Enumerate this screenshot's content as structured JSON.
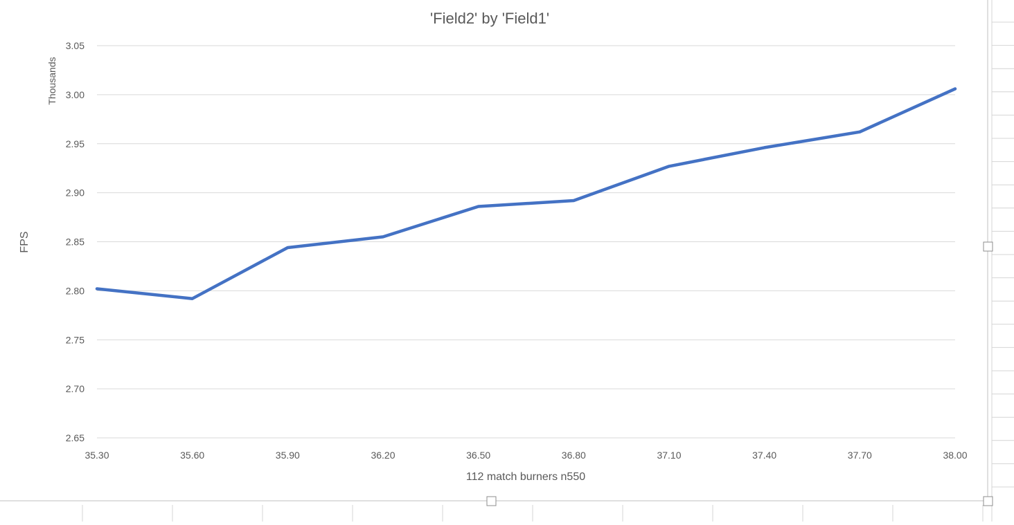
{
  "chart_data": {
    "type": "line",
    "title": "'Field2' by 'Field1'",
    "xlabel": "112 match burners n550",
    "ylabel": "FPS",
    "y_unit_label": "Thousands",
    "x": [
      35.3,
      35.6,
      35.9,
      36.2,
      36.5,
      36.8,
      37.1,
      37.4,
      37.7,
      38.0
    ],
    "x_tick_labels": [
      "35.30",
      "35.60",
      "35.90",
      "36.20",
      "36.50",
      "36.80",
      "37.10",
      "37.40",
      "37.70",
      "38.00"
    ],
    "y_tick_labels": [
      "2.65",
      "2.70",
      "2.75",
      "2.80",
      "2.85",
      "2.90",
      "2.95",
      "3.00",
      "3.05"
    ],
    "series": [
      {
        "values": [
          2.802,
          2.792,
          2.844,
          2.855,
          2.886,
          2.892,
          2.927,
          2.946,
          2.962,
          3.006
        ],
        "color": "#4472c4"
      }
    ],
    "xlim": [
      35.3,
      38.0
    ],
    "ylim": [
      2.65,
      3.05
    ],
    "grid": true,
    "legend": "none"
  }
}
